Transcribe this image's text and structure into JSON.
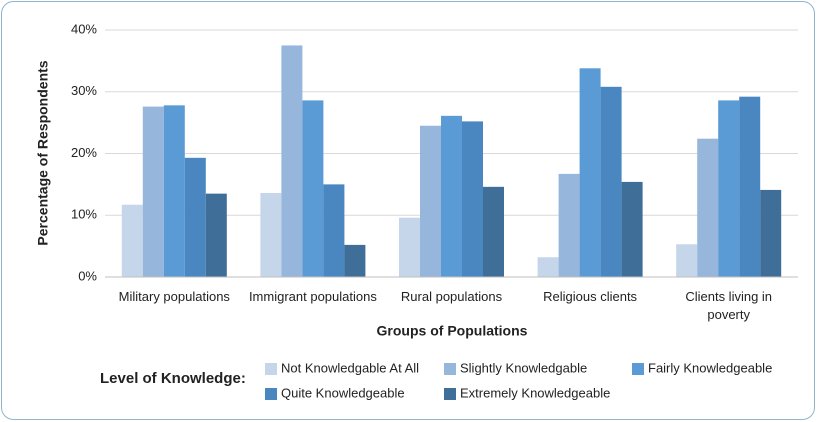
{
  "chart_data": {
    "type": "bar",
    "y_label": "Percentage of Respondents",
    "x_label": "Groups of Populations",
    "legend_title": "Level of Knowledge:",
    "categories": [
      "Military populations",
      "Immigrant populations",
      "Rural populations",
      "Religious clients",
      "Clients living in poverty"
    ],
    "series": [
      {
        "name": "Not Knowledgable At All",
        "color": "#c5d5ea",
        "values": [
          11.7,
          13.6,
          9.6,
          3.2,
          5.3
        ]
      },
      {
        "name": "Slightly Knowledgable",
        "color": "#97b6dc",
        "values": [
          27.6,
          37.5,
          24.5,
          16.7,
          22.4
        ]
      },
      {
        "name": "Fairly Knowledgeable",
        "color": "#5b9bd5",
        "values": [
          27.8,
          28.6,
          26.1,
          33.8,
          28.6
        ]
      },
      {
        "name": "Quite Knowledgeable",
        "color": "#4a86bf",
        "values": [
          19.3,
          15.0,
          25.2,
          30.8,
          29.2
        ]
      },
      {
        "name": "Extremely Knowledgeable",
        "color": "#3f6e98",
        "values": [
          13.5,
          5.2,
          14.6,
          15.4,
          14.1
        ]
      }
    ],
    "ylim": [
      0,
      40
    ],
    "yticks": [
      {
        "value": 0,
        "label": "0%"
      },
      {
        "value": 10,
        "label": "10%"
      },
      {
        "value": 20,
        "label": "20%"
      },
      {
        "value": 30,
        "label": "30%"
      },
      {
        "value": 40,
        "label": "40%"
      }
    ],
    "grid": true
  }
}
